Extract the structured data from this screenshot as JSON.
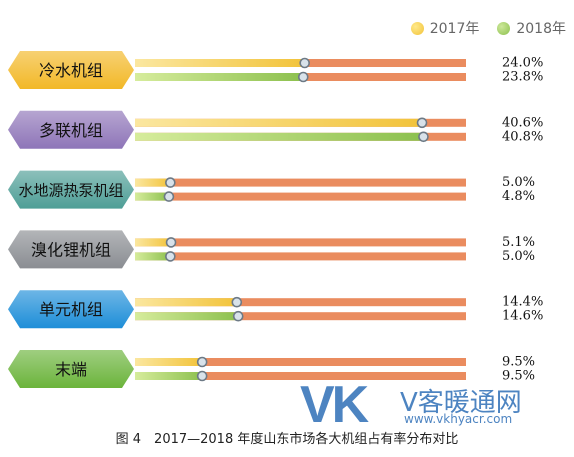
{
  "legend": {
    "items": [
      {
        "label": "2017年",
        "color": "#f2c33a"
      },
      {
        "label": "2018年",
        "color": "#8cc04e"
      }
    ]
  },
  "chart_data": {
    "type": "bar",
    "title": "",
    "xlabel": "",
    "ylabel": "",
    "xlim": [
      0,
      50
    ],
    "grid": false,
    "legend_position": "top-right",
    "categories": [
      "冷水机组",
      "多联机组",
      "水地源热泵机组",
      "溴化锂机组",
      "单元机组",
      "末端"
    ],
    "category_colors": [
      "#f2b827",
      "#8e75b8",
      "#4e9e96",
      "#8a8d92",
      "#1e8ed8",
      "#6bb43b"
    ],
    "track_color": "#ea8c5f",
    "series": [
      {
        "name": "2017年",
        "values": [
          24.0,
          40.6,
          5.0,
          5.1,
          14.4,
          9.5
        ],
        "labels": [
          "24.0%",
          "40.6%",
          "5.0%",
          "5.1%",
          "14.4%",
          "9.5%"
        ]
      },
      {
        "name": "2018年",
        "values": [
          23.8,
          40.8,
          4.8,
          5.0,
          14.6,
          9.5
        ],
        "labels": [
          "23.8%",
          "40.8%",
          "4.8%",
          "5.0%",
          "14.6%",
          "9.5%"
        ]
      }
    ]
  },
  "caption": "图 4　2017—2018 年度山东市场各大机组占有率分布对比",
  "watermark": {
    "logo": "VK",
    "name": "V客暖通网",
    "url": "www.vkhyacr.com"
  }
}
